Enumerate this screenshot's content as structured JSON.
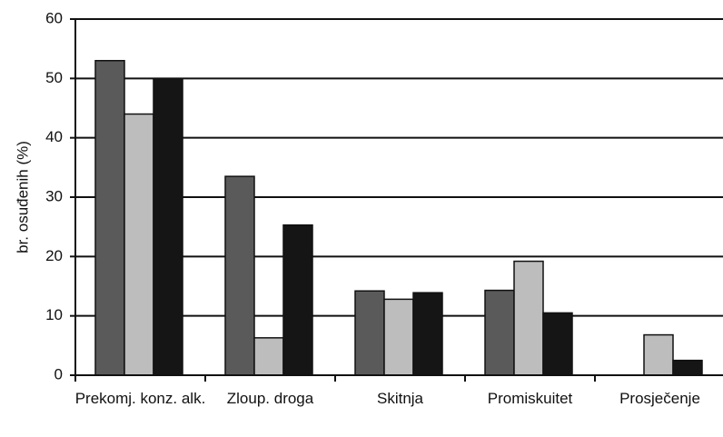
{
  "chart_data": {
    "type": "bar",
    "y_label": "br. osuđenih (%)",
    "categories": [
      "Prekomj. konz. alk.",
      "Zloup. droga",
      "Skitnja",
      "Promiskuitet",
      "Prosječenje"
    ],
    "series": [
      {
        "color": "#5a5a5a",
        "values": [
          53,
          33.5,
          14.2,
          14.3,
          0
        ]
      },
      {
        "color": "#bdbdbd",
        "values": [
          44,
          6.3,
          12.8,
          19.2,
          6.8
        ]
      },
      {
        "color": "#151515",
        "values": [
          50,
          25.3,
          13.9,
          10.5,
          2.5
        ]
      }
    ],
    "ylim": [
      0,
      60
    ],
    "yticks": [
      0,
      10,
      20,
      30,
      40,
      50,
      60
    ],
    "grid": true
  }
}
